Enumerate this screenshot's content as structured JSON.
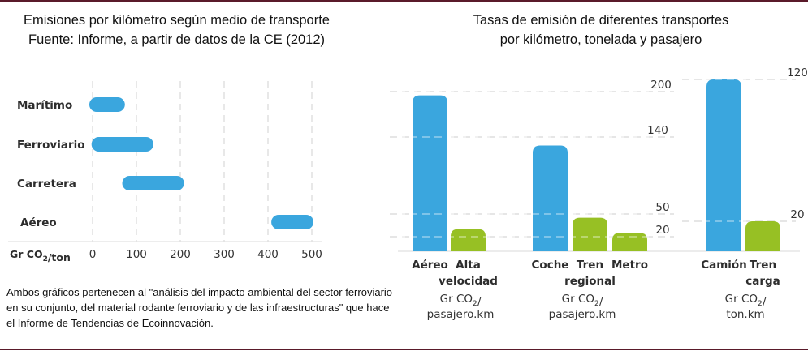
{
  "chart_data": [
    {
      "type": "bar",
      "orientation": "horizontal-range",
      "title": "Emisiones por kilómetro según medio de transporte",
      "subtitle": "Fuente: Informe, a partir de datos de la CE (2012)",
      "xlabel": "Gr CO₂/ton",
      "xlim": [
        0,
        500
      ],
      "xticks": [
        "0",
        "100",
        "200",
        "300",
        "400",
        "500"
      ],
      "grid": true,
      "categories": [
        "Marítimo",
        "Ferroviario",
        "Carretera",
        "Aéreo"
      ],
      "ranges": [
        [
          0,
          70
        ],
        [
          5,
          135
        ],
        [
          75,
          205
        ],
        [
          415,
          500
        ]
      ],
      "color": "#3aa6de"
    },
    {
      "type": "bar",
      "title": "Tasas de emisión de diferentes transportes",
      "subtitle": "por kilómetro, tonelada y pasajero",
      "grid": true,
      "groups": [
        {
          "unit_line1": "Gr CO₂/",
          "unit_line2": "pasajero.km",
          "bars": [
            {
              "label_line1": "Aéreo",
              "label_line2": "",
              "value": 195,
              "color": "#3aa6de"
            },
            {
              "label_line1": "Alta",
              "label_line2": "velocidad",
              "value": 30,
              "color": "#97c024"
            }
          ]
        },
        {
          "unit_line1": "Gr CO₂/",
          "unit_line2": "pasajero.km",
          "bars": [
            {
              "label_line1": "Coche",
              "label_line2": "",
              "value": 130,
              "color": "#3aa6de"
            },
            {
              "label_line1": "Tren",
              "label_line2": "regional",
              "value": 45,
              "color": "#97c024"
            },
            {
              "label_line1": "Metro",
              "label_line2": "",
              "value": 25,
              "color": "#97c024"
            }
          ]
        },
        {
          "unit_line1": "Gr CO₂/",
          "unit_line2": "ton.km",
          "bars": [
            {
              "label_line1": "Camión",
              "label_line2": "",
              "value": 120,
              "color": "#3aa6de"
            },
            {
              "label_line1": "Tren",
              "label_line2": "carga",
              "value": 20,
              "color": "#97c024"
            }
          ]
        }
      ],
      "reference_lines_passenger": [
        "200",
        "140",
        "50",
        "20"
      ],
      "reference_lines_freight": [
        "120",
        "20"
      ]
    }
  ],
  "footnote": "Ambos gráficos pertenecen al \"análisis del impacto ambiental del sector ferroviario en su conjunto, del material rodante ferroviario y de las infraestructuras\" que hace el Informe de Tendencias de Ecoinnovación.",
  "colors": {
    "blue": "#3aa6de",
    "green": "#97c024",
    "grid": "#d9d9d9",
    "border": "#5a1a2a"
  }
}
